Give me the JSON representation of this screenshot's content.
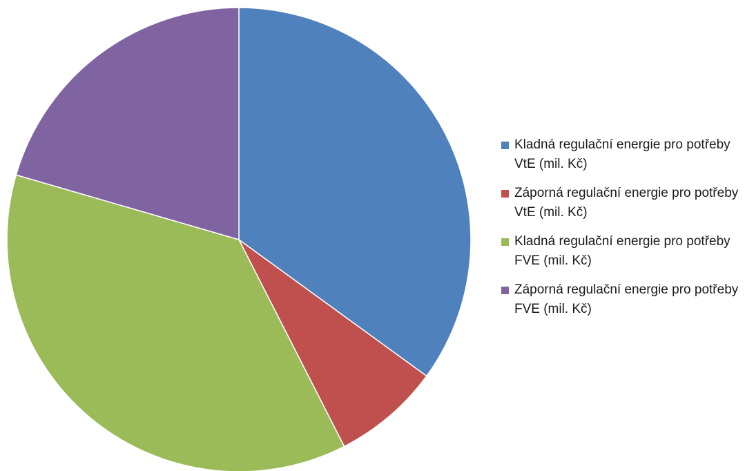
{
  "chart_data": {
    "type": "pie",
    "title": "",
    "legend_position": "right",
    "slices": [
      {
        "label": "Kladná regulační energie pro potřeby VtE (mil. Kč)",
        "value": 35.0,
        "color": "#4F81BD"
      },
      {
        "label": "Záporná regulační energie pro potřeby VtE (mil. Kč)",
        "value": 7.5,
        "color": "#C0504D"
      },
      {
        "label": "Kladná regulační energie pro potřeby FVE (mil. Kč)",
        "value": 37.0,
        "color": "#9BBB59"
      },
      {
        "label": "Záporná regulační energie pro potřeby FVE (mil. Kč)",
        "value": 20.5,
        "color": "#8064A2"
      }
    ]
  }
}
